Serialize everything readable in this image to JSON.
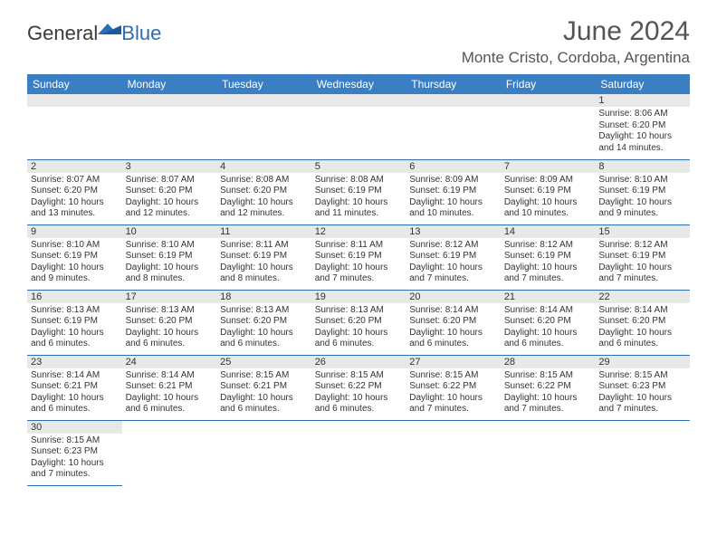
{
  "logo": {
    "general": "General",
    "blue": "Blue"
  },
  "title": "June 2024",
  "location": "Monte Cristo, Cordoba, Argentina",
  "colors": {
    "header_bg": "#3a7fc4",
    "header_text": "#ffffff",
    "rule": "#2a6fb5",
    "daynum_bg": "#e8e8e8",
    "text": "#333333",
    "title_text": "#555555"
  },
  "daynames": [
    "Sunday",
    "Monday",
    "Tuesday",
    "Wednesday",
    "Thursday",
    "Friday",
    "Saturday"
  ],
  "weeks": [
    [
      null,
      null,
      null,
      null,
      null,
      null,
      {
        "n": "1",
        "sr": "8:06 AM",
        "ss": "6:20 PM",
        "dl": "10 hours and 14 minutes."
      }
    ],
    [
      {
        "n": "2",
        "sr": "8:07 AM",
        "ss": "6:20 PM",
        "dl": "10 hours and 13 minutes."
      },
      {
        "n": "3",
        "sr": "8:07 AM",
        "ss": "6:20 PM",
        "dl": "10 hours and 12 minutes."
      },
      {
        "n": "4",
        "sr": "8:08 AM",
        "ss": "6:20 PM",
        "dl": "10 hours and 12 minutes."
      },
      {
        "n": "5",
        "sr": "8:08 AM",
        "ss": "6:19 PM",
        "dl": "10 hours and 11 minutes."
      },
      {
        "n": "6",
        "sr": "8:09 AM",
        "ss": "6:19 PM",
        "dl": "10 hours and 10 minutes."
      },
      {
        "n": "7",
        "sr": "8:09 AM",
        "ss": "6:19 PM",
        "dl": "10 hours and 10 minutes."
      },
      {
        "n": "8",
        "sr": "8:10 AM",
        "ss": "6:19 PM",
        "dl": "10 hours and 9 minutes."
      }
    ],
    [
      {
        "n": "9",
        "sr": "8:10 AM",
        "ss": "6:19 PM",
        "dl": "10 hours and 9 minutes."
      },
      {
        "n": "10",
        "sr": "8:10 AM",
        "ss": "6:19 PM",
        "dl": "10 hours and 8 minutes."
      },
      {
        "n": "11",
        "sr": "8:11 AM",
        "ss": "6:19 PM",
        "dl": "10 hours and 8 minutes."
      },
      {
        "n": "12",
        "sr": "8:11 AM",
        "ss": "6:19 PM",
        "dl": "10 hours and 7 minutes."
      },
      {
        "n": "13",
        "sr": "8:12 AM",
        "ss": "6:19 PM",
        "dl": "10 hours and 7 minutes."
      },
      {
        "n": "14",
        "sr": "8:12 AM",
        "ss": "6:19 PM",
        "dl": "10 hours and 7 minutes."
      },
      {
        "n": "15",
        "sr": "8:12 AM",
        "ss": "6:19 PM",
        "dl": "10 hours and 7 minutes."
      }
    ],
    [
      {
        "n": "16",
        "sr": "8:13 AM",
        "ss": "6:19 PM",
        "dl": "10 hours and 6 minutes."
      },
      {
        "n": "17",
        "sr": "8:13 AM",
        "ss": "6:20 PM",
        "dl": "10 hours and 6 minutes."
      },
      {
        "n": "18",
        "sr": "8:13 AM",
        "ss": "6:20 PM",
        "dl": "10 hours and 6 minutes."
      },
      {
        "n": "19",
        "sr": "8:13 AM",
        "ss": "6:20 PM",
        "dl": "10 hours and 6 minutes."
      },
      {
        "n": "20",
        "sr": "8:14 AM",
        "ss": "6:20 PM",
        "dl": "10 hours and 6 minutes."
      },
      {
        "n": "21",
        "sr": "8:14 AM",
        "ss": "6:20 PM",
        "dl": "10 hours and 6 minutes."
      },
      {
        "n": "22",
        "sr": "8:14 AM",
        "ss": "6:20 PM",
        "dl": "10 hours and 6 minutes."
      }
    ],
    [
      {
        "n": "23",
        "sr": "8:14 AM",
        "ss": "6:21 PM",
        "dl": "10 hours and 6 minutes."
      },
      {
        "n": "24",
        "sr": "8:14 AM",
        "ss": "6:21 PM",
        "dl": "10 hours and 6 minutes."
      },
      {
        "n": "25",
        "sr": "8:15 AM",
        "ss": "6:21 PM",
        "dl": "10 hours and 6 minutes."
      },
      {
        "n": "26",
        "sr": "8:15 AM",
        "ss": "6:22 PM",
        "dl": "10 hours and 6 minutes."
      },
      {
        "n": "27",
        "sr": "8:15 AM",
        "ss": "6:22 PM",
        "dl": "10 hours and 7 minutes."
      },
      {
        "n": "28",
        "sr": "8:15 AM",
        "ss": "6:22 PM",
        "dl": "10 hours and 7 minutes."
      },
      {
        "n": "29",
        "sr": "8:15 AM",
        "ss": "6:23 PM",
        "dl": "10 hours and 7 minutes."
      }
    ],
    [
      {
        "n": "30",
        "sr": "8:15 AM",
        "ss": "6:23 PM",
        "dl": "10 hours and 7 minutes."
      },
      null,
      null,
      null,
      null,
      null,
      null
    ]
  ],
  "labels": {
    "sunrise": "Sunrise: ",
    "sunset": "Sunset: ",
    "daylight": "Daylight: "
  }
}
